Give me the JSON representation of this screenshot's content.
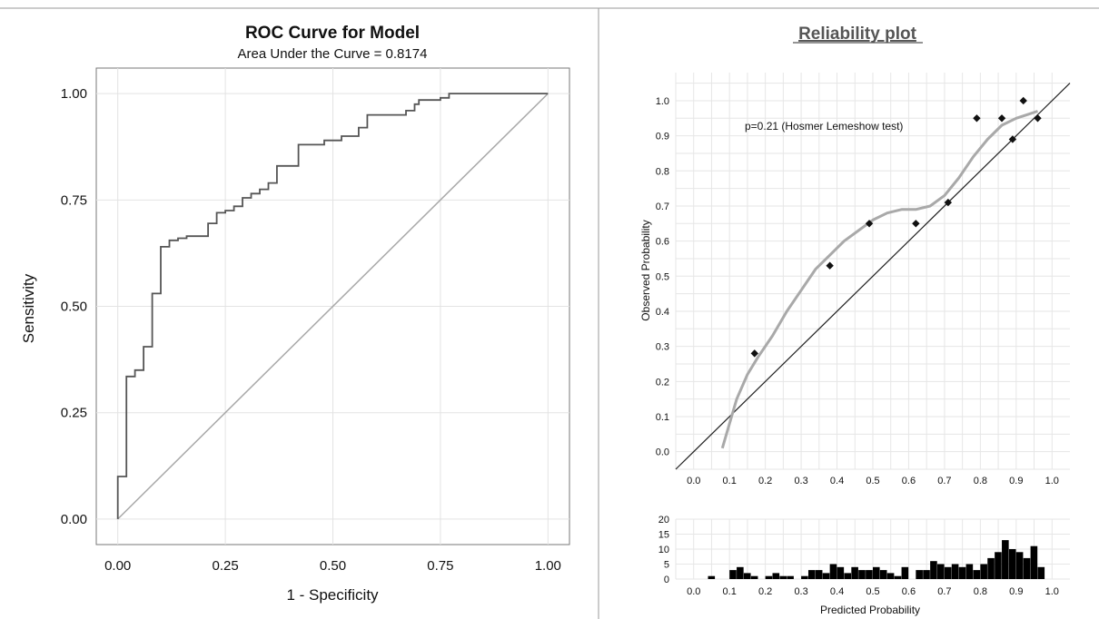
{
  "chart_data": [
    {
      "type": "line",
      "title": "ROC Curve for Model",
      "subtitle": "Area Under the Curve = 0.8174",
      "xlabel": "1 - Specificity",
      "ylabel": "Sensitivity",
      "xlim": [
        -0.05,
        1.05
      ],
      "ylim": [
        -0.06,
        1.06
      ],
      "xticks": [
        "0.00",
        "0.25",
        "0.50",
        "0.75",
        "1.00"
      ],
      "yticks": [
        "0.00",
        "0.25",
        "0.50",
        "0.75",
        "1.00"
      ],
      "grid": true,
      "reference_line": [
        [
          0,
          0
        ],
        [
          1,
          1
        ]
      ],
      "series": [
        {
          "x": [
            0,
            0,
            0.02,
            0.02,
            0.04,
            0.04,
            0.06,
            0.06,
            0.08,
            0.08,
            0.1,
            0.1,
            0.12,
            0.12,
            0.14,
            0.14,
            0.16,
            0.16,
            0.21,
            0.21,
            0.23,
            0.23,
            0.25,
            0.25,
            0.27,
            0.27,
            0.29,
            0.29,
            0.31,
            0.31,
            0.33,
            0.33,
            0.35,
            0.35,
            0.37,
            0.37,
            0.39,
            0.39,
            0.42,
            0.42,
            0.48,
            0.48,
            0.52,
            0.52,
            0.56,
            0.56,
            0.58,
            0.58,
            0.67,
            0.67,
            0.69,
            0.69,
            0.7,
            0.7,
            0.75,
            0.75,
            0.77,
            0.77,
            0.79,
            0.79,
            1.0
          ],
          "y": [
            0,
            0.1,
            0.1,
            0.335,
            0.335,
            0.35,
            0.35,
            0.405,
            0.405,
            0.53,
            0.53,
            0.64,
            0.64,
            0.655,
            0.655,
            0.66,
            0.66,
            0.665,
            0.665,
            0.695,
            0.695,
            0.72,
            0.72,
            0.725,
            0.725,
            0.735,
            0.735,
            0.755,
            0.755,
            0.765,
            0.765,
            0.775,
            0.775,
            0.79,
            0.79,
            0.83,
            0.83,
            0.83,
            0.83,
            0.88,
            0.88,
            0.89,
            0.89,
            0.9,
            0.9,
            0.92,
            0.92,
            0.95,
            0.95,
            0.96,
            0.96,
            0.975,
            0.975,
            0.985,
            0.985,
            0.99,
            0.99,
            1.0,
            1.0,
            1.0,
            1.0
          ]
        }
      ]
    },
    {
      "type": "scatter",
      "title": "Reliability plot",
      "xlabel": "Predicted Probability",
      "ylabel": "Observed Probability",
      "annotation": "p=0.21 (Hosmer Lemeshow test)",
      "xlim": [
        -0.05,
        1.05
      ],
      "ylim": [
        -0.05,
        1.08
      ],
      "xticks": [
        "0.0",
        "0.1",
        "0.2",
        "0.3",
        "0.4",
        "0.5",
        "0.6",
        "0.7",
        "0.8",
        "0.9",
        "1.0"
      ],
      "yticks": [
        "0.0",
        "0.1",
        "0.2",
        "0.3",
        "0.4",
        "0.5",
        "0.6",
        "0.7",
        "0.8",
        "0.9",
        "1.0"
      ],
      "grid": true,
      "reference_line": [
        [
          -0.05,
          -0.05
        ],
        [
          1.05,
          1.05
        ]
      ],
      "points": {
        "x": [
          0.17,
          0.38,
          0.49,
          0.62,
          0.71,
          0.79,
          0.86,
          0.89,
          0.92,
          0.96
        ],
        "y": [
          0.28,
          0.53,
          0.65,
          0.65,
          0.71,
          0.95,
          0.95,
          0.89,
          1.0,
          0.95
        ]
      },
      "smooth": {
        "x": [
          0.08,
          0.1,
          0.12,
          0.15,
          0.18,
          0.22,
          0.26,
          0.3,
          0.34,
          0.38,
          0.42,
          0.46,
          0.5,
          0.54,
          0.58,
          0.62,
          0.66,
          0.7,
          0.74,
          0.78,
          0.82,
          0.86,
          0.9,
          0.93,
          0.96
        ],
        "y": [
          0.01,
          0.08,
          0.15,
          0.22,
          0.27,
          0.33,
          0.4,
          0.46,
          0.52,
          0.56,
          0.6,
          0.63,
          0.66,
          0.68,
          0.69,
          0.69,
          0.7,
          0.73,
          0.78,
          0.84,
          0.89,
          0.93,
          0.95,
          0.96,
          0.97
        ]
      }
    },
    {
      "type": "bar",
      "title": "",
      "xlabel": "Predicted Probability",
      "ylabel": "",
      "xlim": [
        -0.05,
        1.05
      ],
      "ylim": [
        0,
        20
      ],
      "xticks": [
        "0.0",
        "0.1",
        "0.2",
        "0.3",
        "0.4",
        "0.5",
        "0.6",
        "0.7",
        "0.8",
        "0.9",
        "1.0"
      ],
      "yticks": [
        "0",
        "5",
        "10",
        "15",
        "20"
      ],
      "grid": true,
      "bin_width": 0.02,
      "bins": [
        0.04,
        0.1,
        0.12,
        0.14,
        0.16,
        0.2,
        0.22,
        0.24,
        0.26,
        0.3,
        0.32,
        0.34,
        0.36,
        0.38,
        0.4,
        0.42,
        0.44,
        0.46,
        0.48,
        0.5,
        0.52,
        0.54,
        0.56,
        0.58,
        0.62,
        0.64,
        0.66,
        0.68,
        0.7,
        0.72,
        0.74,
        0.76,
        0.78,
        0.8,
        0.82,
        0.84,
        0.86,
        0.88,
        0.9,
        0.92,
        0.94,
        0.96
      ],
      "values": [
        1,
        3,
        4,
        2,
        1,
        1,
        2,
        1,
        1,
        1,
        3,
        3,
        2,
        5,
        4,
        2,
        4,
        3,
        3,
        4,
        3,
        2,
        1,
        4,
        3,
        3,
        6,
        5,
        4,
        5,
        4,
        5,
        3,
        5,
        7,
        9,
        13,
        10,
        9,
        7,
        11,
        4
      ]
    }
  ]
}
